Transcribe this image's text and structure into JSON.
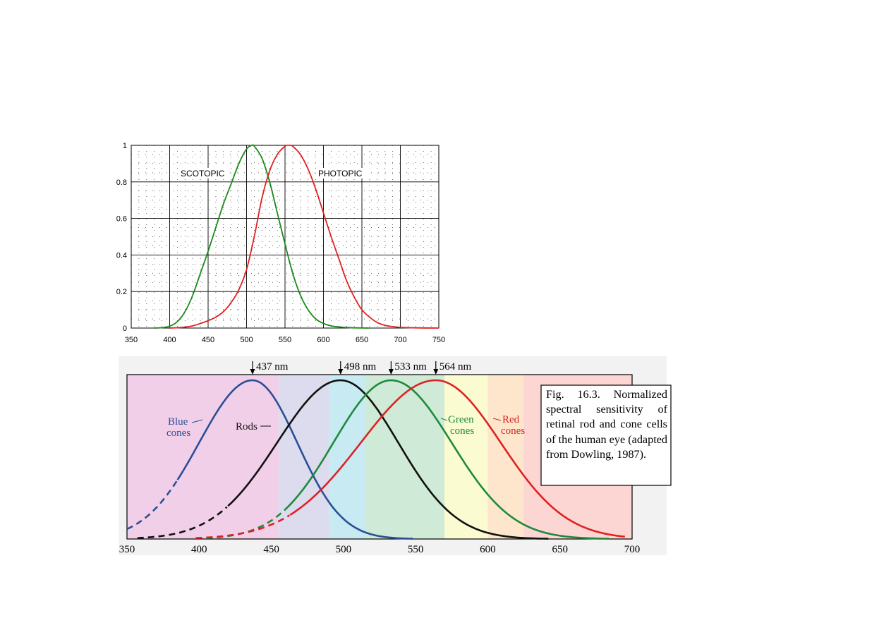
{
  "chart_data": [
    {
      "type": "line",
      "name": "luminosity",
      "xlim": [
        350,
        750
      ],
      "ylim": [
        0,
        1
      ],
      "x_ticks": [
        "350",
        "400",
        "450",
        "500",
        "550",
        "600",
        "650",
        "700",
        "750"
      ],
      "y_ticks": [
        "0",
        "0.2",
        "0.4",
        "0.6",
        "0.8",
        "1"
      ],
      "grid": true,
      "series": [
        {
          "name": "SCOTOPIC",
          "color": "#1a8a1a",
          "peak": 507,
          "x": [
            380,
            390,
            400,
            410,
            420,
            430,
            440,
            450,
            460,
            470,
            480,
            490,
            500,
            507,
            510,
            520,
            530,
            540,
            550,
            560,
            570,
            580,
            590,
            600,
            610,
            620,
            630,
            640,
            650,
            660
          ],
          "y": [
            0.0,
            0.002,
            0.01,
            0.035,
            0.09,
            0.18,
            0.3,
            0.42,
            0.55,
            0.68,
            0.79,
            0.9,
            0.98,
            1.0,
            0.995,
            0.93,
            0.8,
            0.63,
            0.46,
            0.3,
            0.18,
            0.1,
            0.05,
            0.025,
            0.012,
            0.006,
            0.003,
            0.001,
            0.0005,
            0.0
          ]
        },
        {
          "name": "PHOTOPIC",
          "color": "#e02020",
          "peak": 555,
          "x": [
            400,
            410,
            420,
            430,
            440,
            450,
            460,
            470,
            480,
            490,
            500,
            510,
            520,
            530,
            540,
            550,
            555,
            560,
            570,
            580,
            590,
            600,
            610,
            620,
            630,
            640,
            650,
            660,
            670,
            680,
            690,
            700,
            720,
            750
          ],
          "y": [
            0.0,
            0.002,
            0.005,
            0.012,
            0.025,
            0.04,
            0.06,
            0.09,
            0.14,
            0.21,
            0.32,
            0.5,
            0.71,
            0.86,
            0.95,
            0.995,
            1.0,
            0.995,
            0.95,
            0.87,
            0.76,
            0.63,
            0.5,
            0.38,
            0.26,
            0.17,
            0.1,
            0.06,
            0.03,
            0.015,
            0.008,
            0.004,
            0.001,
            0.0
          ]
        }
      ]
    },
    {
      "type": "line",
      "name": "cones-rods",
      "xlim": [
        350,
        700
      ],
      "x_ticks": [
        "350",
        "400",
        "450",
        "500",
        "550",
        "600",
        "650",
        "700"
      ],
      "peak_labels": [
        "437 nm",
        "498 nm",
        "533 nm",
        "564 nm"
      ],
      "peaks": [
        437,
        498,
        533,
        564
      ],
      "caption": "Fig. 16.3. Normalized spectral sensitivity of retinal rod and cone cells of the human eye (adapted from Dowling, 1987).",
      "bands": [
        {
          "from": 350,
          "to": 455,
          "color": "#f2cfe8"
        },
        {
          "from": 455,
          "to": 490,
          "color": "#dcdcee"
        },
        {
          "from": 490,
          "to": 515,
          "color": "#c8eaf3"
        },
        {
          "from": 515,
          "to": 570,
          "color": "#cfead6"
        },
        {
          "from": 570,
          "to": 600,
          "color": "#fbfbd2"
        },
        {
          "from": 600,
          "to": 625,
          "color": "#fde6cc"
        },
        {
          "from": 625,
          "to": 700,
          "color": "#fcd6d2"
        }
      ],
      "series": [
        {
          "name": "Blue cones",
          "label1": "Blue",
          "label2": "cones",
          "color": "#2a4f96",
          "peak": 437,
          "left_width": 37,
          "right_width": 31,
          "dash_until": 385
        },
        {
          "name": "Rods",
          "label1": "Rods",
          "color": "#111111",
          "peak": 498,
          "left_width": 44,
          "right_width": 40,
          "dash_until": 420
        },
        {
          "name": "Green cones",
          "label1": "Green",
          "label2": "cones",
          "color": "#1e8a3c",
          "peak": 533,
          "left_width": 40,
          "right_width": 42,
          "dash_until": 460
        },
        {
          "name": "Red cones",
          "label1": "Red",
          "label2": "cones",
          "color": "#dd2222",
          "peak": 564,
          "left_width": 52,
          "right_width": 45,
          "dash_until": 463
        }
      ]
    }
  ]
}
